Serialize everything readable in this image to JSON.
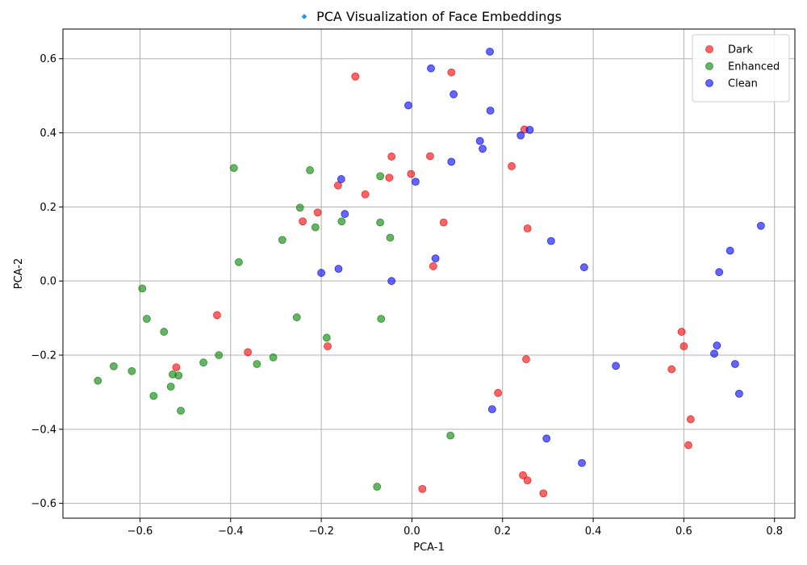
{
  "chart_data": {
    "type": "scatter",
    "title": "🔹 PCA Visualization of Face Embeddings",
    "xlabel": "PCA-1",
    "ylabel": "PCA-2",
    "xlim": [
      -0.77,
      0.845
    ],
    "ylim": [
      -0.64,
      0.68
    ],
    "xticks": [
      -0.6,
      -0.4,
      -0.2,
      0.0,
      0.2,
      0.4,
      0.6,
      0.8
    ],
    "yticks": [
      -0.6,
      -0.4,
      -0.2,
      0.0,
      0.2,
      0.4,
      0.6
    ],
    "xtick_labels": [
      "−0.6",
      "−0.4",
      "−0.2",
      "0.0",
      "0.2",
      "0.4",
      "0.6",
      "0.8"
    ],
    "ytick_labels": [
      "−0.6",
      "−0.4",
      "−0.2",
      "0.0",
      "0.2",
      "0.4",
      "0.6"
    ],
    "grid": true,
    "legend_position": "top-right",
    "series": [
      {
        "name": "Dark",
        "color": "#f00000",
        "points": [
          [
            -0.125,
            0.552
          ],
          [
            0.087,
            0.563
          ],
          [
            -0.045,
            0.336
          ],
          [
            0.04,
            0.337
          ],
          [
            -0.05,
            0.279
          ],
          [
            -0.002,
            0.289
          ],
          [
            -0.163,
            0.258
          ],
          [
            -0.103,
            0.234
          ],
          [
            0.22,
            0.31
          ],
          [
            0.248,
            0.409
          ],
          [
            -0.208,
            0.185
          ],
          [
            -0.241,
            0.161
          ],
          [
            0.07,
            0.158
          ],
          [
            0.255,
            0.142
          ],
          [
            0.047,
            0.04
          ],
          [
            -0.43,
            -0.092
          ],
          [
            -0.362,
            -0.192
          ],
          [
            -0.186,
            -0.176
          ],
          [
            -0.52,
            -0.233
          ],
          [
            0.252,
            -0.211
          ],
          [
            0.19,
            -0.302
          ],
          [
            0.595,
            -0.137
          ],
          [
            0.6,
            -0.176
          ],
          [
            0.573,
            -0.238
          ],
          [
            0.615,
            -0.373
          ],
          [
            0.61,
            -0.443
          ],
          [
            0.245,
            -0.524
          ],
          [
            0.255,
            -0.538
          ],
          [
            0.29,
            -0.573
          ],
          [
            0.023,
            -0.561
          ]
        ]
      },
      {
        "name": "Enhanced",
        "color": "#008000",
        "points": [
          [
            -0.393,
            0.305
          ],
          [
            -0.225,
            0.299
          ],
          [
            -0.07,
            0.283
          ],
          [
            -0.247,
            0.198
          ],
          [
            -0.213,
            0.145
          ],
          [
            -0.155,
            0.161
          ],
          [
            -0.07,
            0.158
          ],
          [
            -0.048,
            0.117
          ],
          [
            -0.286,
            0.111
          ],
          [
            -0.382,
            0.051
          ],
          [
            -0.595,
            -0.02
          ],
          [
            -0.585,
            -0.102
          ],
          [
            -0.547,
            -0.137
          ],
          [
            -0.254,
            -0.098
          ],
          [
            -0.068,
            -0.102
          ],
          [
            -0.188,
            -0.153
          ],
          [
            -0.426,
            -0.2
          ],
          [
            -0.306,
            -0.206
          ],
          [
            -0.342,
            -0.224
          ],
          [
            -0.46,
            -0.22
          ],
          [
            -0.658,
            -0.23
          ],
          [
            -0.618,
            -0.243
          ],
          [
            -0.528,
            -0.252
          ],
          [
            -0.515,
            -0.255
          ],
          [
            -0.693,
            -0.269
          ],
          [
            -0.532,
            -0.285
          ],
          [
            -0.57,
            -0.31
          ],
          [
            -0.51,
            -0.35
          ],
          [
            0.085,
            -0.417
          ],
          [
            -0.077,
            -0.555
          ]
        ]
      },
      {
        "name": "Clean",
        "color": "#0000f0",
        "points": [
          [
            0.172,
            0.619
          ],
          [
            0.042,
            0.574
          ],
          [
            0.092,
            0.504
          ],
          [
            -0.008,
            0.474
          ],
          [
            0.173,
            0.46
          ],
          [
            0.26,
            0.408
          ],
          [
            0.24,
            0.393
          ],
          [
            0.15,
            0.378
          ],
          [
            0.156,
            0.357
          ],
          [
            0.087,
            0.322
          ],
          [
            -0.156,
            0.275
          ],
          [
            0.008,
            0.268
          ],
          [
            -0.148,
            0.181
          ],
          [
            0.307,
            0.108
          ],
          [
            0.052,
            0.061
          ],
          [
            0.38,
            0.037
          ],
          [
            -0.162,
            0.033
          ],
          [
            -0.2,
            0.022
          ],
          [
            -0.045,
            0.0
          ],
          [
            0.77,
            0.149
          ],
          [
            0.702,
            0.082
          ],
          [
            0.678,
            0.024
          ],
          [
            0.673,
            -0.174
          ],
          [
            0.667,
            -0.196
          ],
          [
            0.713,
            -0.224
          ],
          [
            0.45,
            -0.229
          ],
          [
            0.722,
            -0.304
          ],
          [
            0.177,
            -0.346
          ],
          [
            0.297,
            -0.425
          ],
          [
            0.375,
            -0.491
          ]
        ]
      }
    ]
  }
}
